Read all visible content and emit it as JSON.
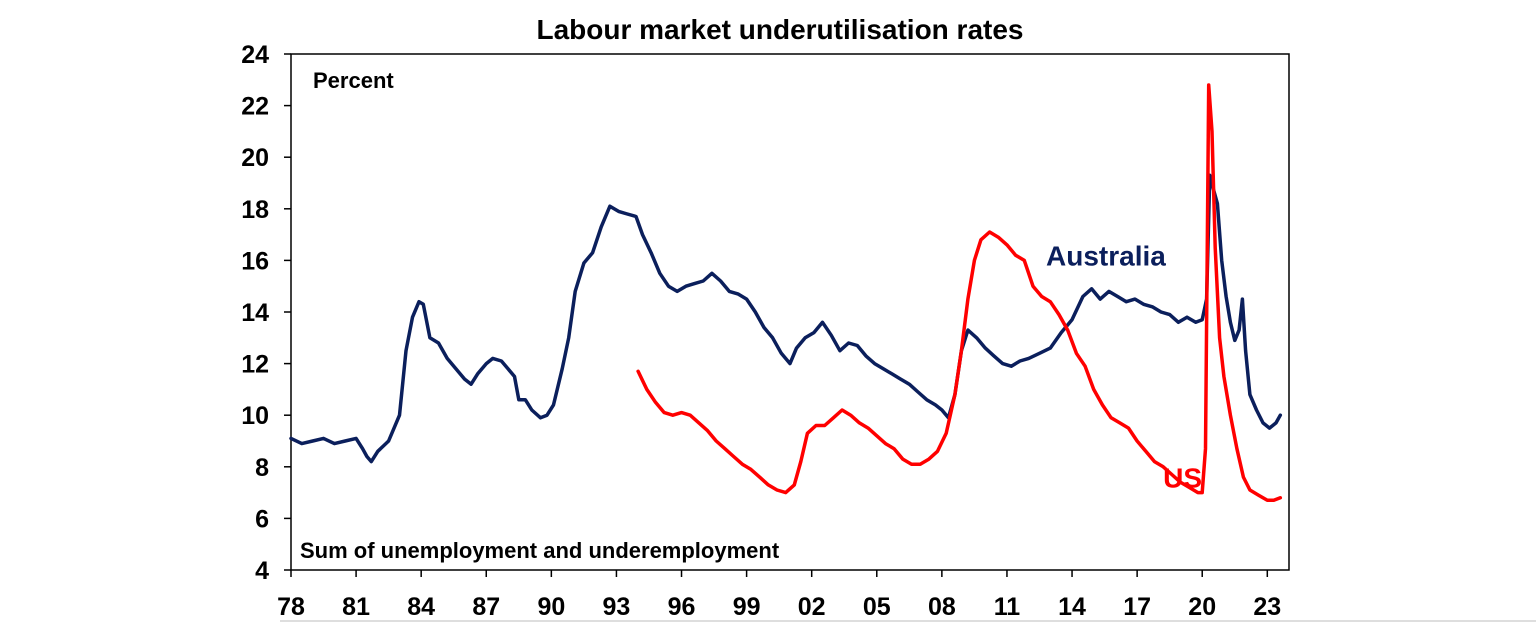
{
  "chart_data": {
    "type": "line",
    "title": "Labour market underutilisation rates",
    "ylabel": "Percent",
    "note": "Sum of unemployment and underemployment",
    "xlim": [
      1978,
      2024
    ],
    "ylim": [
      4,
      24
    ],
    "y_ticks": [
      4,
      6,
      8,
      10,
      12,
      14,
      16,
      18,
      20,
      22,
      24
    ],
    "x_ticks": [
      {
        "value": 1978,
        "label": "78"
      },
      {
        "value": 1981,
        "label": "81"
      },
      {
        "value": 1984,
        "label": "84"
      },
      {
        "value": 1987,
        "label": "87"
      },
      {
        "value": 1990,
        "label": "90"
      },
      {
        "value": 1993,
        "label": "93"
      },
      {
        "value": 1996,
        "label": "96"
      },
      {
        "value": 1999,
        "label": "99"
      },
      {
        "value": 2002,
        "label": "02"
      },
      {
        "value": 2005,
        "label": "05"
      },
      {
        "value": 2008,
        "label": "08"
      },
      {
        "value": 2011,
        "label": "11"
      },
      {
        "value": 2014,
        "label": "14"
      },
      {
        "value": 2017,
        "label": "17"
      },
      {
        "value": 2020,
        "label": "20"
      },
      {
        "value": 2023,
        "label": "23"
      }
    ],
    "grid": false,
    "legend": "inline labels",
    "series": [
      {
        "name": "Australia",
        "color": "#0b1f5c",
        "label_at": [
          2012.8,
          15.8
        ],
        "points": [
          [
            1978.0,
            9.1
          ],
          [
            1978.5,
            8.9
          ],
          [
            1979.0,
            9.0
          ],
          [
            1979.5,
            9.1
          ],
          [
            1980.0,
            8.9
          ],
          [
            1980.5,
            9.0
          ],
          [
            1981.0,
            9.1
          ],
          [
            1981.3,
            8.7
          ],
          [
            1981.5,
            8.4
          ],
          [
            1981.7,
            8.2
          ],
          [
            1982.0,
            8.6
          ],
          [
            1982.5,
            9.0
          ],
          [
            1983.0,
            10.0
          ],
          [
            1983.3,
            12.5
          ],
          [
            1983.6,
            13.8
          ],
          [
            1983.9,
            14.4
          ],
          [
            1984.1,
            14.3
          ],
          [
            1984.4,
            13.0
          ],
          [
            1984.8,
            12.8
          ],
          [
            1985.2,
            12.2
          ],
          [
            1985.6,
            11.8
          ],
          [
            1986.0,
            11.4
          ],
          [
            1986.3,
            11.2
          ],
          [
            1986.6,
            11.6
          ],
          [
            1987.0,
            12.0
          ],
          [
            1987.3,
            12.2
          ],
          [
            1987.7,
            12.1
          ],
          [
            1988.0,
            11.8
          ],
          [
            1988.3,
            11.5
          ],
          [
            1988.5,
            10.6
          ],
          [
            1988.8,
            10.6
          ],
          [
            1989.1,
            10.2
          ],
          [
            1989.5,
            9.9
          ],
          [
            1989.8,
            10.0
          ],
          [
            1990.1,
            10.4
          ],
          [
            1990.5,
            11.8
          ],
          [
            1990.8,
            13.0
          ],
          [
            1991.1,
            14.8
          ],
          [
            1991.5,
            15.9
          ],
          [
            1991.9,
            16.3
          ],
          [
            1992.3,
            17.3
          ],
          [
            1992.7,
            18.1
          ],
          [
            1993.1,
            17.9
          ],
          [
            1993.5,
            17.8
          ],
          [
            1993.9,
            17.7
          ],
          [
            1994.2,
            17.0
          ],
          [
            1994.6,
            16.3
          ],
          [
            1995.0,
            15.5
          ],
          [
            1995.4,
            15.0
          ],
          [
            1995.8,
            14.8
          ],
          [
            1996.2,
            15.0
          ],
          [
            1996.6,
            15.1
          ],
          [
            1997.0,
            15.2
          ],
          [
            1997.4,
            15.5
          ],
          [
            1997.8,
            15.2
          ],
          [
            1998.2,
            14.8
          ],
          [
            1998.6,
            14.7
          ],
          [
            1999.0,
            14.5
          ],
          [
            1999.4,
            14.0
          ],
          [
            1999.8,
            13.4
          ],
          [
            2000.2,
            13.0
          ],
          [
            2000.6,
            12.4
          ],
          [
            2001.0,
            12.0
          ],
          [
            2001.3,
            12.6
          ],
          [
            2001.7,
            13.0
          ],
          [
            2002.1,
            13.2
          ],
          [
            2002.5,
            13.6
          ],
          [
            2002.9,
            13.1
          ],
          [
            2003.3,
            12.5
          ],
          [
            2003.7,
            12.8
          ],
          [
            2004.1,
            12.7
          ],
          [
            2004.5,
            12.3
          ],
          [
            2004.9,
            12.0
          ],
          [
            2005.3,
            11.8
          ],
          [
            2005.7,
            11.6
          ],
          [
            2006.1,
            11.4
          ],
          [
            2006.5,
            11.2
          ],
          [
            2006.9,
            10.9
          ],
          [
            2007.3,
            10.6
          ],
          [
            2007.7,
            10.4
          ],
          [
            2008.0,
            10.2
          ],
          [
            2008.3,
            9.9
          ],
          [
            2008.6,
            10.8
          ],
          [
            2008.9,
            12.5
          ],
          [
            2009.2,
            13.3
          ],
          [
            2009.6,
            13.0
          ],
          [
            2010.0,
            12.6
          ],
          [
            2010.4,
            12.3
          ],
          [
            2010.8,
            12.0
          ],
          [
            2011.2,
            11.9
          ],
          [
            2011.6,
            12.1
          ],
          [
            2012.0,
            12.2
          ],
          [
            2012.5,
            12.4
          ],
          [
            2013.0,
            12.6
          ],
          [
            2013.5,
            13.2
          ],
          [
            2014.0,
            13.7
          ],
          [
            2014.5,
            14.6
          ],
          [
            2014.9,
            14.9
          ],
          [
            2015.3,
            14.5
          ],
          [
            2015.7,
            14.8
          ],
          [
            2016.1,
            14.6
          ],
          [
            2016.5,
            14.4
          ],
          [
            2016.9,
            14.5
          ],
          [
            2017.3,
            14.3
          ],
          [
            2017.7,
            14.2
          ],
          [
            2018.1,
            14.0
          ],
          [
            2018.5,
            13.9
          ],
          [
            2018.9,
            13.6
          ],
          [
            2019.3,
            13.8
          ],
          [
            2019.7,
            13.6
          ],
          [
            2020.0,
            13.7
          ],
          [
            2020.2,
            14.5
          ],
          [
            2020.35,
            19.3
          ],
          [
            2020.5,
            18.8
          ],
          [
            2020.7,
            18.2
          ],
          [
            2020.9,
            16.0
          ],
          [
            2021.1,
            14.6
          ],
          [
            2021.3,
            13.6
          ],
          [
            2021.5,
            12.9
          ],
          [
            2021.7,
            13.3
          ],
          [
            2021.85,
            14.5
          ],
          [
            2022.0,
            12.5
          ],
          [
            2022.2,
            10.8
          ],
          [
            2022.5,
            10.2
          ],
          [
            2022.8,
            9.7
          ],
          [
            2023.1,
            9.5
          ],
          [
            2023.4,
            9.7
          ],
          [
            2023.6,
            10.0
          ]
        ]
      },
      {
        "name": "US",
        "color": "#ff0000",
        "label_at": [
          2018.2,
          7.2
        ],
        "points": [
          [
            1994.0,
            11.7
          ],
          [
            1994.4,
            11.0
          ],
          [
            1994.8,
            10.5
          ],
          [
            1995.2,
            10.1
          ],
          [
            1995.6,
            10.0
          ],
          [
            1996.0,
            10.1
          ],
          [
            1996.4,
            10.0
          ],
          [
            1996.8,
            9.7
          ],
          [
            1997.2,
            9.4
          ],
          [
            1997.6,
            9.0
          ],
          [
            1998.0,
            8.7
          ],
          [
            1998.4,
            8.4
          ],
          [
            1998.8,
            8.1
          ],
          [
            1999.2,
            7.9
          ],
          [
            1999.6,
            7.6
          ],
          [
            2000.0,
            7.3
          ],
          [
            2000.4,
            7.1
          ],
          [
            2000.8,
            7.0
          ],
          [
            2001.2,
            7.3
          ],
          [
            2001.5,
            8.2
          ],
          [
            2001.8,
            9.3
          ],
          [
            2002.2,
            9.6
          ],
          [
            2002.6,
            9.6
          ],
          [
            2003.0,
            9.9
          ],
          [
            2003.4,
            10.2
          ],
          [
            2003.8,
            10.0
          ],
          [
            2004.2,
            9.7
          ],
          [
            2004.6,
            9.5
          ],
          [
            2005.0,
            9.2
          ],
          [
            2005.4,
            8.9
          ],
          [
            2005.8,
            8.7
          ],
          [
            2006.2,
            8.3
          ],
          [
            2006.6,
            8.1
          ],
          [
            2007.0,
            8.1
          ],
          [
            2007.4,
            8.3
          ],
          [
            2007.8,
            8.6
          ],
          [
            2008.2,
            9.3
          ],
          [
            2008.6,
            10.8
          ],
          [
            2008.9,
            12.5
          ],
          [
            2009.2,
            14.5
          ],
          [
            2009.5,
            16.0
          ],
          [
            2009.8,
            16.8
          ],
          [
            2010.2,
            17.1
          ],
          [
            2010.6,
            16.9
          ],
          [
            2011.0,
            16.6
          ],
          [
            2011.4,
            16.2
          ],
          [
            2011.8,
            16.0
          ],
          [
            2012.2,
            15.0
          ],
          [
            2012.6,
            14.6
          ],
          [
            2013.0,
            14.4
          ],
          [
            2013.4,
            13.9
          ],
          [
            2013.8,
            13.3
          ],
          [
            2014.2,
            12.4
          ],
          [
            2014.6,
            11.9
          ],
          [
            2015.0,
            11.0
          ],
          [
            2015.4,
            10.4
          ],
          [
            2015.8,
            9.9
          ],
          [
            2016.2,
            9.7
          ],
          [
            2016.6,
            9.5
          ],
          [
            2017.0,
            9.0
          ],
          [
            2017.4,
            8.6
          ],
          [
            2017.8,
            8.2
          ],
          [
            2018.2,
            8.0
          ],
          [
            2018.6,
            7.7
          ],
          [
            2019.0,
            7.4
          ],
          [
            2019.4,
            7.2
          ],
          [
            2019.8,
            7.0
          ],
          [
            2020.0,
            7.0
          ],
          [
            2020.15,
            8.7
          ],
          [
            2020.3,
            22.8
          ],
          [
            2020.45,
            21.0
          ],
          [
            2020.6,
            16.5
          ],
          [
            2020.8,
            13.0
          ],
          [
            2021.0,
            11.5
          ],
          [
            2021.3,
            10.0
          ],
          [
            2021.6,
            8.7
          ],
          [
            2021.9,
            7.6
          ],
          [
            2022.2,
            7.1
          ],
          [
            2022.6,
            6.9
          ],
          [
            2023.0,
            6.7
          ],
          [
            2023.3,
            6.7
          ],
          [
            2023.6,
            6.8
          ]
        ]
      }
    ]
  }
}
